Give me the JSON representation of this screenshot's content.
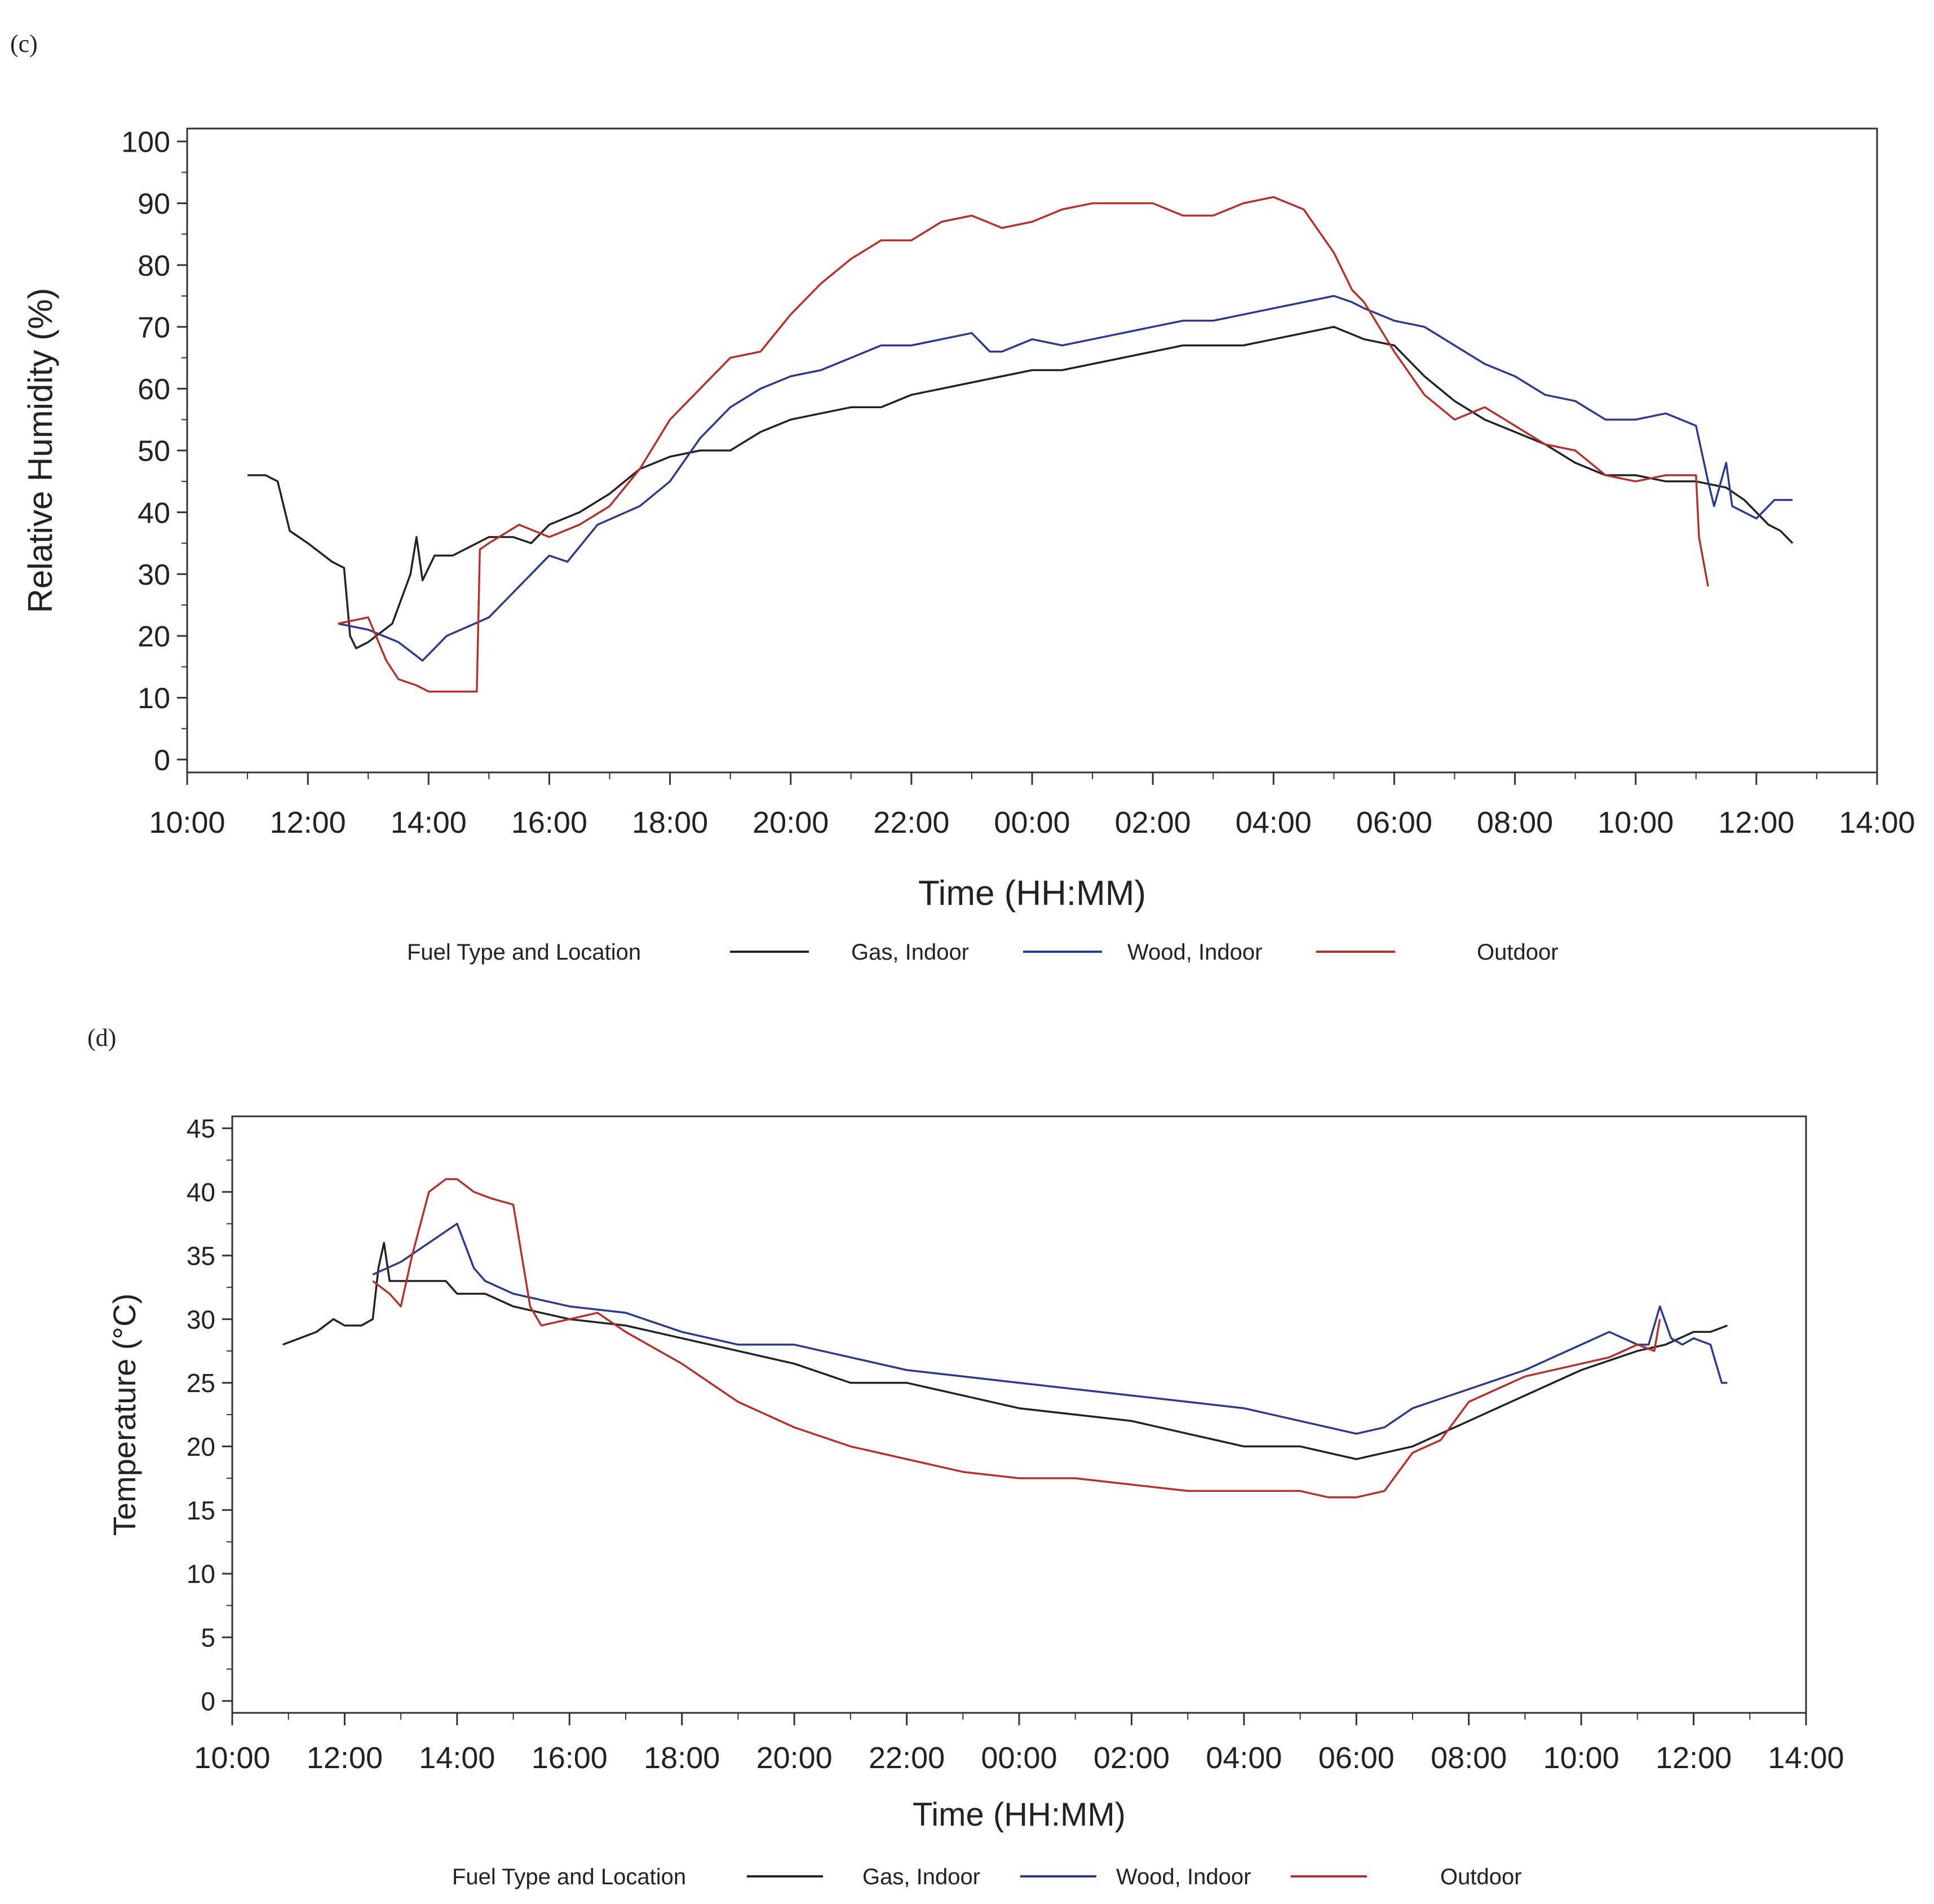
{
  "charts": [
    {
      "panel_label": "(c)",
      "color_key": "c"
    },
    {
      "panel_label": "(d)",
      "color_key": "d"
    }
  ],
  "colors": {
    "gas": "#222222",
    "wood": "#2c3a8c",
    "outdoor": "#b2322d",
    "frame": "#333333",
    "text": "#222222"
  },
  "chart_data": [
    {
      "type": "line",
      "panel": "(c)",
      "title": "",
      "xlabel": "Time (HH:MM)",
      "ylabel": "Relative Humidity (%)",
      "x_unit": "hours since 10:00",
      "xlim": [
        0,
        28
      ],
      "ylim": [
        0,
        100
      ],
      "yticks": [
        0,
        10,
        20,
        30,
        40,
        50,
        60,
        70,
        80,
        90,
        100
      ],
      "xtick_positions": [
        0,
        2,
        4,
        6,
        8,
        10,
        12,
        14,
        16,
        18,
        20,
        22,
        24,
        26,
        28
      ],
      "xtick_labels": [
        "10:00",
        "12:00",
        "14:00",
        "16:00",
        "18:00",
        "20:00",
        "22:00",
        "00:00",
        "02:00",
        "04:00",
        "06:00",
        "08:00",
        "10:00",
        "12:00",
        "14:00"
      ],
      "legend": {
        "title": "Fuel Type and Location",
        "placement": "bottom"
      },
      "series": [
        {
          "name": "Gas, Indoor",
          "color_key": "gas",
          "x": [
            1.0,
            1.3,
            1.5,
            1.6,
            1.7,
            2.0,
            2.4,
            2.6,
            2.7,
            2.8,
            3.0,
            3.4,
            3.7,
            3.8,
            3.9,
            4.1,
            4.4,
            4.6,
            5.0,
            5.4,
            5.7,
            6.0,
            6.5,
            7.0,
            7.5,
            8.0,
            8.5,
            9.0,
            9.5,
            10.0,
            10.5,
            11.0,
            11.5,
            12.0,
            12.5,
            13.0,
            13.5,
            14.0,
            14.5,
            15.0,
            15.5,
            16.0,
            16.5,
            17.0,
            17.5,
            18.0,
            18.5,
            19.0,
            19.5,
            20.0,
            20.5,
            21.0,
            21.5,
            22.0,
            22.5,
            23.0,
            23.5,
            24.0,
            24.5,
            25.0,
            25.5,
            25.8,
            26.0,
            26.2,
            26.4,
            26.6
          ],
          "y": [
            46,
            46,
            45,
            41,
            37,
            35,
            32,
            31,
            20,
            18,
            19,
            22,
            30,
            36,
            29,
            33,
            33,
            34,
            36,
            36,
            35,
            38,
            40,
            43,
            47,
            49,
            50,
            50,
            53,
            55,
            56,
            57,
            57,
            59,
            60,
            61,
            62,
            63,
            63,
            64,
            65,
            66,
            67,
            67,
            67,
            68,
            69,
            70,
            68,
            67,
            62,
            58,
            55,
            53,
            51,
            48,
            46,
            46,
            45,
            45,
            44,
            42,
            40,
            38,
            37,
            35
          ]
        },
        {
          "name": "Wood, Indoor",
          "color_key": "wood",
          "x": [
            2.5,
            3.0,
            3.5,
            3.9,
            4.0,
            4.3,
            5.0,
            5.5,
            6.0,
            6.3,
            6.8,
            7.5,
            8.0,
            8.5,
            9.0,
            9.5,
            10.0,
            10.5,
            11.0,
            11.5,
            12.0,
            12.5,
            13.0,
            13.3,
            13.5,
            14.0,
            14.5,
            15.0,
            15.5,
            16.0,
            16.5,
            17.0,
            17.5,
            18.0,
            18.5,
            19.0,
            19.3,
            19.5,
            20.0,
            20.5,
            21.0,
            21.5,
            22.0,
            22.5,
            23.0,
            23.5,
            24.0,
            24.5,
            25.0,
            25.2,
            25.3,
            25.5,
            25.6,
            25.8,
            26.0,
            26.3,
            26.6
          ],
          "y": [
            22,
            21,
            19,
            16,
            17,
            20,
            23,
            28,
            33,
            32,
            38,
            41,
            45,
            52,
            57,
            60,
            62,
            63,
            65,
            67,
            67,
            68,
            69,
            66,
            66,
            68,
            67,
            68,
            69,
            70,
            71,
            71,
            72,
            73,
            74,
            75,
            74,
            73,
            71,
            70,
            67,
            64,
            62,
            59,
            58,
            55,
            55,
            56,
            54,
            45,
            41,
            48,
            41,
            40,
            39,
            42,
            42
          ]
        },
        {
          "name": "Outdoor",
          "color_key": "outdoor",
          "x": [
            2.5,
            3.0,
            3.3,
            3.5,
            3.8,
            4.0,
            4.5,
            4.8,
            4.85,
            5.0,
            5.5,
            6.0,
            6.5,
            7.0,
            7.5,
            8.0,
            8.5,
            9.0,
            9.5,
            10.0,
            10.5,
            11.0,
            11.5,
            12.0,
            12.5,
            13.0,
            13.5,
            14.0,
            14.5,
            15.0,
            15.5,
            16.0,
            16.5,
            17.0,
            17.5,
            18.0,
            18.5,
            19.0,
            19.3,
            19.5,
            20.0,
            20.5,
            21.0,
            21.5,
            22.0,
            22.5,
            23.0,
            23.5,
            24.0,
            24.5,
            25.0,
            25.05,
            25.2
          ],
          "y": [
            22,
            23,
            16,
            13,
            12,
            11,
            11,
            11,
            34,
            35,
            38,
            36,
            38,
            41,
            47,
            55,
            60,
            65,
            66,
            72,
            77,
            81,
            84,
            84,
            87,
            88,
            86,
            87,
            89,
            90,
            90,
            90,
            88,
            88,
            90,
            91,
            89,
            82,
            76,
            74,
            66,
            59,
            55,
            57,
            54,
            51,
            50,
            46,
            45,
            46,
            46,
            36,
            28
          ]
        }
      ]
    },
    {
      "type": "line",
      "panel": "(d)",
      "title": "",
      "xlabel": "Time (HH:MM)",
      "ylabel": "Temperature (°C)",
      "x_unit": "hours since 10:00",
      "xlim": [
        0,
        28
      ],
      "ylim": [
        0,
        45
      ],
      "yticks": [
        0,
        5,
        10,
        15,
        20,
        25,
        30,
        35,
        40,
        45
      ],
      "xtick_positions": [
        0,
        2,
        4,
        6,
        8,
        10,
        12,
        14,
        16,
        18,
        20,
        22,
        24,
        26,
        28
      ],
      "xtick_labels": [
        "10:00",
        "12:00",
        "14:00",
        "16:00",
        "18:00",
        "20:00",
        "22:00",
        "00:00",
        "02:00",
        "04:00",
        "06:00",
        "08:00",
        "10:00",
        "12:00",
        "14:00"
      ],
      "legend": {
        "title": "Fuel Type and Location",
        "placement": "bottom"
      },
      "series": [
        {
          "name": "Gas, Indoor",
          "color_key": "gas",
          "x": [
            0.9,
            1.2,
            1.5,
            1.8,
            2.0,
            2.3,
            2.5,
            2.6,
            2.7,
            2.8,
            3.0,
            3.5,
            3.8,
            4.0,
            4.5,
            5.0,
            5.5,
            6.0,
            7.0,
            8.0,
            9.0,
            10.0,
            11.0,
            12.0,
            13.0,
            14.0,
            15.0,
            16.0,
            17.0,
            18.0,
            19.0,
            20.0,
            20.5,
            21.0,
            22.0,
            23.0,
            24.0,
            25.0,
            25.5,
            26.0,
            26.3,
            26.6
          ],
          "y": [
            28,
            28.5,
            29,
            30,
            29.5,
            29.5,
            30,
            34,
            36,
            33,
            33,
            33,
            33,
            32,
            32,
            31,
            30.5,
            30,
            29.5,
            28.5,
            27.5,
            26.5,
            25,
            25,
            24,
            23,
            22.5,
            22,
            21,
            20,
            20,
            19,
            19.5,
            20,
            22,
            24,
            26,
            27.5,
            28,
            29,
            29,
            29.5
          ]
        },
        {
          "name": "Wood, Indoor",
          "color_key": "wood",
          "x": [
            2.5,
            3.0,
            3.5,
            4.0,
            4.3,
            4.5,
            5.0,
            6.0,
            7.0,
            8.0,
            9.0,
            10.0,
            11.0,
            12.0,
            13.0,
            14.0,
            15.0,
            16.0,
            17.0,
            18.0,
            19.0,
            20.0,
            20.5,
            21.0,
            22.0,
            23.0,
            24.0,
            24.5,
            25.0,
            25.2,
            25.4,
            25.6,
            25.8,
            26.0,
            26.3,
            26.5,
            26.6
          ],
          "y": [
            33.5,
            34.5,
            36,
            37.5,
            34,
            33,
            32,
            31,
            30.5,
            29,
            28,
            28,
            27,
            26,
            25.5,
            25,
            24.5,
            24,
            23.5,
            23,
            22,
            21,
            21.5,
            23,
            24.5,
            26,
            28,
            29,
            28,
            28,
            31,
            28.5,
            28,
            28.5,
            28,
            25,
            25
          ]
        },
        {
          "name": "Outdoor",
          "color_key": "outdoor",
          "x": [
            2.5,
            2.8,
            3.0,
            3.2,
            3.5,
            3.8,
            4.0,
            4.3,
            4.6,
            5.0,
            5.3,
            5.5,
            6.0,
            6.5,
            7.0,
            8.0,
            9.0,
            10.0,
            11.0,
            12.0,
            13.0,
            14.0,
            15.0,
            16.0,
            17.0,
            18.0,
            19.0,
            19.5,
            20.0,
            20.5,
            21.0,
            21.5,
            22.0,
            23.0,
            24.0,
            24.5,
            25.0,
            25.3,
            25.4
          ],
          "y": [
            33,
            32,
            31,
            35,
            40,
            41,
            41,
            40,
            39.5,
            39,
            31,
            29.5,
            30,
            30.5,
            29,
            26.5,
            23.5,
            21.5,
            20,
            19,
            18,
            17.5,
            17.5,
            17,
            16.5,
            16.5,
            16.5,
            16,
            16,
            16.5,
            19.5,
            20.5,
            23.5,
            25.5,
            26.5,
            27,
            28,
            27.5,
            30
          ]
        }
      ]
    }
  ]
}
